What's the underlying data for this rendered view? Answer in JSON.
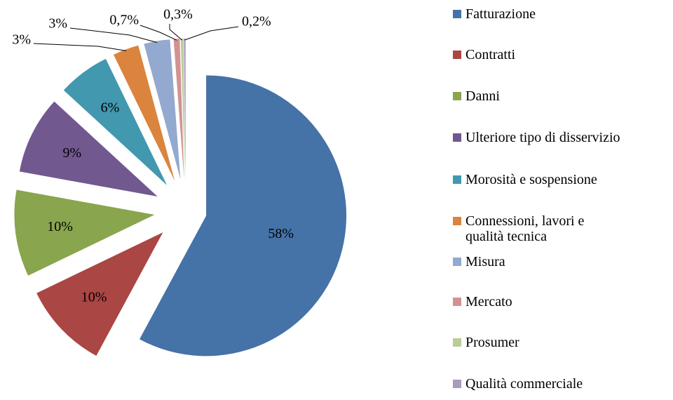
{
  "chart_data": {
    "type": "pie",
    "categories": [
      "Fatturazione",
      "Contratti",
      "Danni",
      "Ulteriore tipo di disservizio",
      "Morosità e sospensione",
      "Connessioni, lavori e qualità tecnica",
      "Misura",
      "Mercato",
      "Prosumer",
      "Qualità commerciale"
    ],
    "values": [
      58,
      10,
      10,
      9,
      6,
      3,
      3,
      0.7,
      0.3,
      0.2
    ],
    "value_labels": [
      "58%",
      "10%",
      "10%",
      "9%",
      "6%",
      "3%",
      "3%",
      "0,7%",
      "0,3%",
      "0,2%"
    ],
    "colors": [
      "#4572a7",
      "#aa4643",
      "#89a54e",
      "#71588f",
      "#4198af",
      "#db843d",
      "#93a9cf",
      "#d19392",
      "#b9cd96",
      "#a99bbd"
    ],
    "legend": "right"
  }
}
